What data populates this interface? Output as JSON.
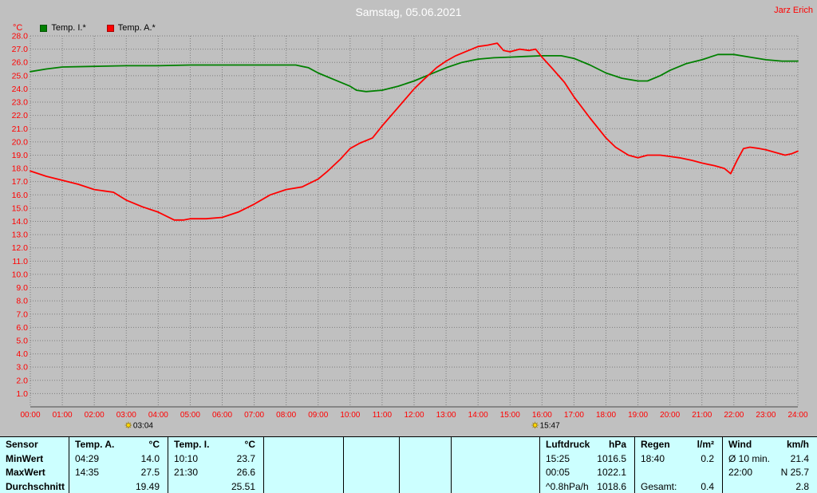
{
  "header": {
    "author": "Jarz Erich"
  },
  "colors": {
    "page_bg": "#c0c0c0",
    "table_bg": "#ccffff",
    "title_text": "#ffffff",
    "author_text": "#ff0000",
    "grid": "#7d7d7d",
    "axis": "#4a4a4a",
    "tick_label": "#ff0000",
    "marker_icon": "#ffd700"
  },
  "chart_data": {
    "type": "line",
    "title": "Samstag, 05.06.2021",
    "xlabel": "",
    "ylabel": "°C",
    "xlim": [
      0,
      24
    ],
    "ylim": [
      0,
      28
    ],
    "xstep": 1,
    "ystep": 1,
    "x_tick_suffix": ":00",
    "grid": true,
    "legend_position": "top-left",
    "axis_label_color": "#ff0000",
    "legend": [
      {
        "label": "Temp. I.*",
        "color": "#008000"
      },
      {
        "label": "Temp. A.*",
        "color": "#ff0000"
      }
    ],
    "series": [
      {
        "id": "temp-i",
        "name": "Temp. I.",
        "color": "#008000",
        "points": [
          [
            0,
            25.3
          ],
          [
            0.5,
            25.5
          ],
          [
            1,
            25.65
          ],
          [
            2,
            25.7
          ],
          [
            3,
            25.75
          ],
          [
            4,
            25.75
          ],
          [
            5,
            25.8
          ],
          [
            6,
            25.8
          ],
          [
            7,
            25.8
          ],
          [
            8,
            25.8
          ],
          [
            8.3,
            25.8
          ],
          [
            8.7,
            25.6
          ],
          [
            9,
            25.2
          ],
          [
            9.5,
            24.7
          ],
          [
            10,
            24.2
          ],
          [
            10.2,
            23.9
          ],
          [
            10.5,
            23.8
          ],
          [
            11,
            23.9
          ],
          [
            11.5,
            24.2
          ],
          [
            12,
            24.6
          ],
          [
            12.5,
            25.1
          ],
          [
            13,
            25.6
          ],
          [
            13.5,
            26.0
          ],
          [
            14,
            26.25
          ],
          [
            14.5,
            26.35
          ],
          [
            15,
            26.4
          ],
          [
            15.5,
            26.45
          ],
          [
            16,
            26.5
          ],
          [
            16.6,
            26.5
          ],
          [
            17,
            26.3
          ],
          [
            17.5,
            25.8
          ],
          [
            18,
            25.2
          ],
          [
            18.5,
            24.8
          ],
          [
            19,
            24.6
          ],
          [
            19.3,
            24.6
          ],
          [
            19.7,
            25.0
          ],
          [
            20,
            25.4
          ],
          [
            20.5,
            25.9
          ],
          [
            21,
            26.2
          ],
          [
            21.5,
            26.6
          ],
          [
            22,
            26.6
          ],
          [
            22.5,
            26.4
          ],
          [
            23,
            26.2
          ],
          [
            23.5,
            26.1
          ],
          [
            24,
            26.1
          ]
        ]
      },
      {
        "id": "temp-a",
        "name": "Temp. A.",
        "color": "#ff0000",
        "points": [
          [
            0,
            17.8
          ],
          [
            0.5,
            17.4
          ],
          [
            1,
            17.1
          ],
          [
            1.5,
            16.8
          ],
          [
            2,
            16.4
          ],
          [
            2.3,
            16.3
          ],
          [
            2.6,
            16.2
          ],
          [
            3,
            15.6
          ],
          [
            3.5,
            15.1
          ],
          [
            4,
            14.7
          ],
          [
            4.5,
            14.1
          ],
          [
            4.8,
            14.1
          ],
          [
            5,
            14.2
          ],
          [
            5.5,
            14.2
          ],
          [
            6,
            14.3
          ],
          [
            6.5,
            14.7
          ],
          [
            7,
            15.3
          ],
          [
            7.5,
            16.0
          ],
          [
            8,
            16.4
          ],
          [
            8.5,
            16.6
          ],
          [
            9,
            17.2
          ],
          [
            9.3,
            17.8
          ],
          [
            9.7,
            18.7
          ],
          [
            10,
            19.5
          ],
          [
            10.3,
            19.9
          ],
          [
            10.7,
            20.3
          ],
          [
            11,
            21.2
          ],
          [
            11.5,
            22.6
          ],
          [
            12,
            24.0
          ],
          [
            12.3,
            24.7
          ],
          [
            12.7,
            25.6
          ],
          [
            13,
            26.1
          ],
          [
            13.3,
            26.5
          ],
          [
            13.7,
            26.9
          ],
          [
            14,
            27.2
          ],
          [
            14.3,
            27.3
          ],
          [
            14.6,
            27.45
          ],
          [
            14.8,
            26.9
          ],
          [
            15,
            26.8
          ],
          [
            15.3,
            27.0
          ],
          [
            15.6,
            26.9
          ],
          [
            15.8,
            27.0
          ],
          [
            16,
            26.4
          ],
          [
            16.3,
            25.6
          ],
          [
            16.7,
            24.5
          ],
          [
            17,
            23.4
          ],
          [
            17.5,
            21.8
          ],
          [
            18,
            20.3
          ],
          [
            18.3,
            19.6
          ],
          [
            18.7,
            19.0
          ],
          [
            19,
            18.8
          ],
          [
            19.3,
            19.0
          ],
          [
            19.7,
            19.0
          ],
          [
            20,
            18.9
          ],
          [
            20.3,
            18.8
          ],
          [
            20.7,
            18.6
          ],
          [
            21,
            18.4
          ],
          [
            21.4,
            18.2
          ],
          [
            21.7,
            18.0
          ],
          [
            21.9,
            17.6
          ],
          [
            22.1,
            18.6
          ],
          [
            22.3,
            19.5
          ],
          [
            22.5,
            19.6
          ],
          [
            22.8,
            19.5
          ],
          [
            23,
            19.4
          ],
          [
            23.3,
            19.2
          ],
          [
            23.6,
            19.0
          ],
          [
            23.8,
            19.1
          ],
          [
            24,
            19.3
          ]
        ]
      }
    ],
    "markers": [
      {
        "t": 3.067,
        "label": "03:04",
        "icon": "sun"
      },
      {
        "t": 15.783,
        "label": "15:47",
        "icon": "sun"
      }
    ]
  },
  "table": {
    "corner": "Sensor",
    "row_labels": [
      "MinWert",
      "MaxWert",
      "Durchschnitt"
    ],
    "groups": [
      {
        "name": "Temp. A.",
        "unit": "°C",
        "min": {
          "t": "04:29",
          "v": "14.0"
        },
        "max": {
          "t": "14:35",
          "v": "27.5"
        },
        "avg": {
          "t": "",
          "v": "19.49"
        }
      },
      {
        "name": "Temp. I.",
        "unit": "°C",
        "min": {
          "t": "10:10",
          "v": "23.7"
        },
        "max": {
          "t": "21:30",
          "v": "26.6"
        },
        "avg": {
          "t": "",
          "v": "25.51"
        }
      },
      {
        "name": "Luftdruck",
        "unit": "hPa",
        "min": {
          "t": "15:25",
          "v": "1016.5"
        },
        "max": {
          "t": "00:05",
          "v": "1022.1"
        },
        "avg": {
          "t": "^0.8hPa/h",
          "v": "1018.6"
        }
      },
      {
        "name": "Regen",
        "unit": "l/m²",
        "min": {
          "t": "18:40",
          "v": "0.2"
        },
        "max": {
          "t": "",
          "v": ""
        },
        "avg": {
          "t": "Gesamt:",
          "v": "0.4"
        }
      },
      {
        "name": "Wind",
        "unit": "km/h",
        "min": {
          "t": "Ø 10 min.",
          "v": "21.4"
        },
        "max": {
          "t": "22:00",
          "v": "N 25.7"
        },
        "avg": {
          "t": "",
          "v": "2.8"
        }
      }
    ]
  }
}
